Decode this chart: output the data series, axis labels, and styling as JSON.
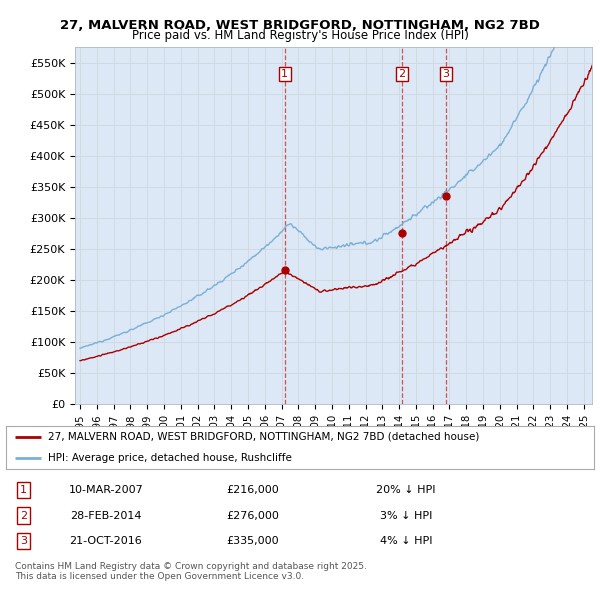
{
  "title_line1": "27, MALVERN ROAD, WEST BRIDGFORD, NOTTINGHAM, NG2 7BD",
  "title_line2": "Price paid vs. HM Land Registry's House Price Index (HPI)",
  "yticks": [
    0,
    50000,
    100000,
    150000,
    200000,
    250000,
    300000,
    350000,
    400000,
    450000,
    500000,
    550000
  ],
  "ytick_labels": [
    "£0",
    "£50K",
    "£100K",
    "£150K",
    "£200K",
    "£250K",
    "£300K",
    "£350K",
    "£400K",
    "£450K",
    "£500K",
    "£550K"
  ],
  "xlim_start": 1994.7,
  "xlim_end": 2025.5,
  "ylim_bottom": 0,
  "ylim_top": 575000,
  "sale_color": "#aa0000",
  "hpi_color": "#7ab0d8",
  "hpi_fill_color": "#dce8f5",
  "sale_label": "27, MALVERN ROAD, WEST BRIDGFORD, NOTTINGHAM, NG2 7BD (detached house)",
  "hpi_label": "HPI: Average price, detached house, Rushcliffe",
  "transactions": [
    {
      "num": 1,
      "date": "10-MAR-2007",
      "price": 216000,
      "hpi_diff": "20% ↓ HPI",
      "year": 2007.19
    },
    {
      "num": 2,
      "date": "28-FEB-2014",
      "price": 276000,
      "hpi_diff": "3% ↓ HPI",
      "year": 2014.16
    },
    {
      "num": 3,
      "date": "21-OCT-2016",
      "price": 335000,
      "hpi_diff": "4% ↓ HPI",
      "year": 2016.8
    }
  ],
  "footer": "Contains HM Land Registry data © Crown copyright and database right 2025.\nThis data is licensed under the Open Government Licence v3.0.",
  "background_color": "#ffffff",
  "grid_color": "#d0d8e0",
  "chart_bg_color": "#dce8f5"
}
